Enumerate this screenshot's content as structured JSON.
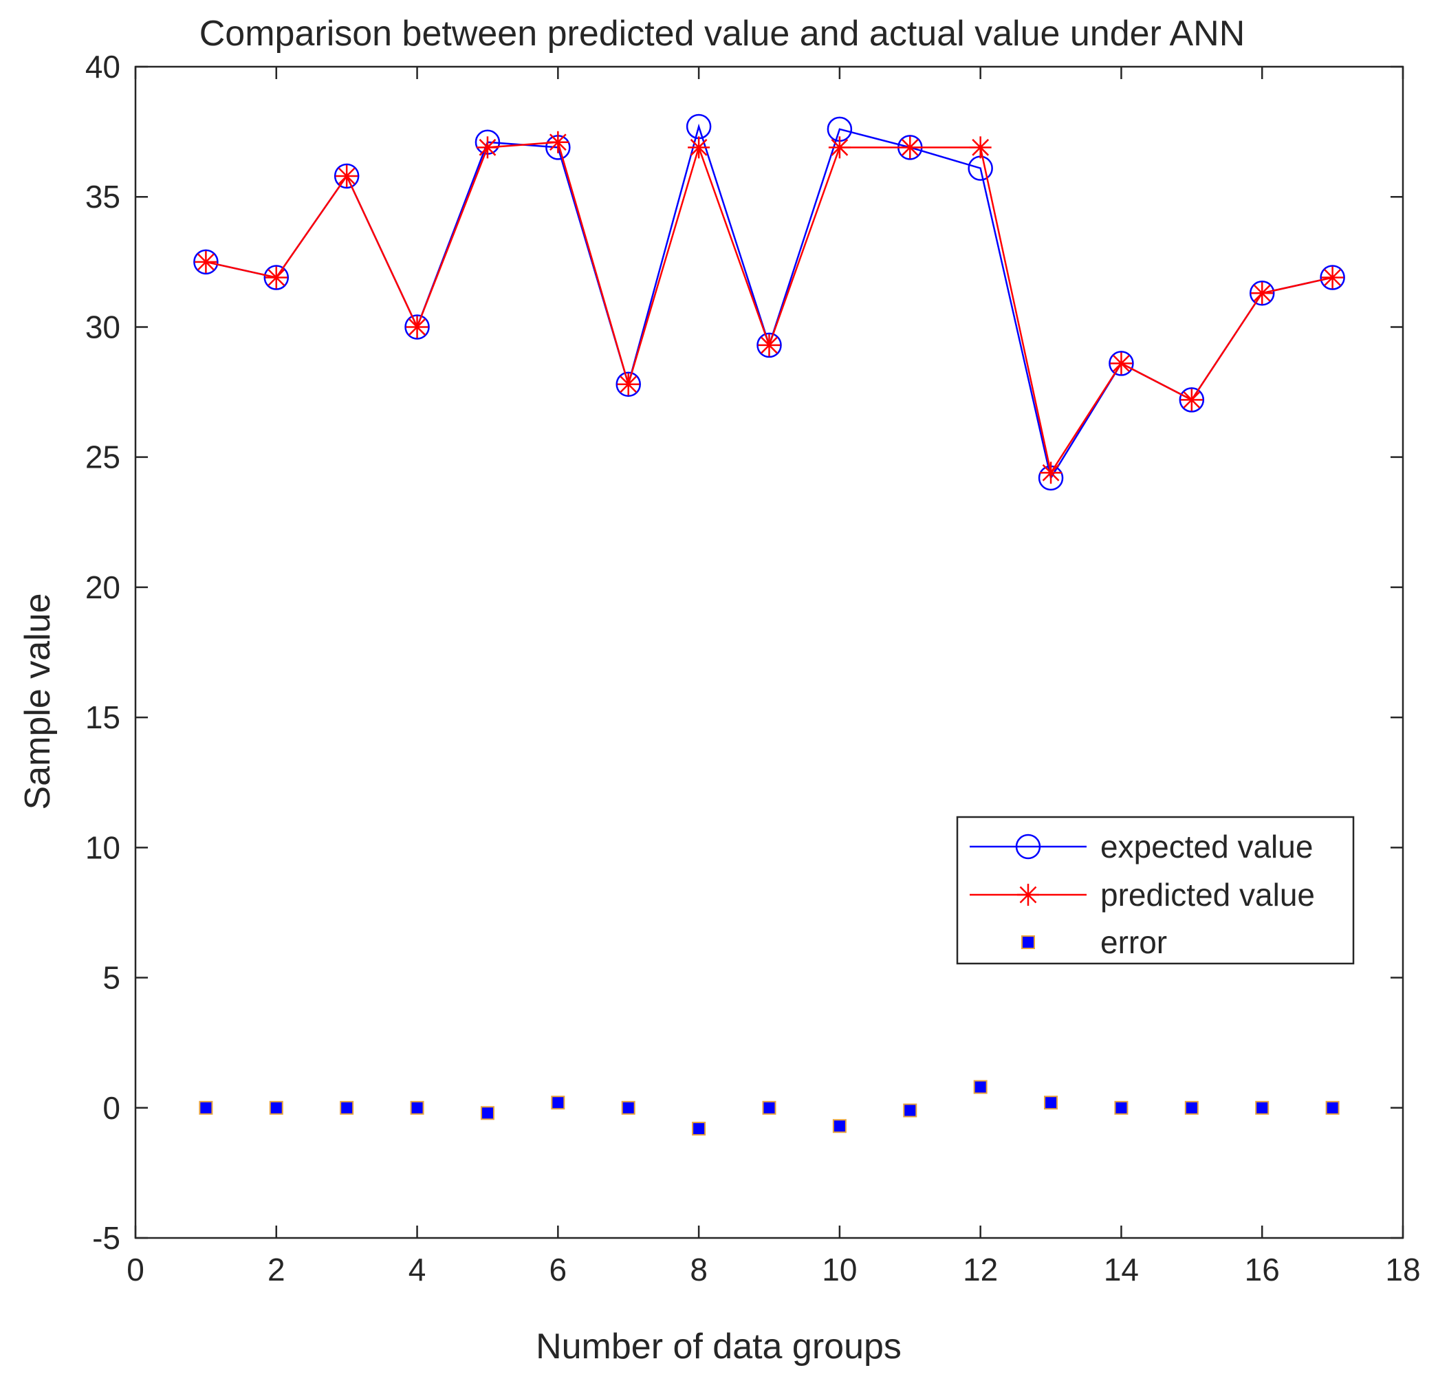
{
  "chart_data": {
    "type": "line",
    "title": "Comparison between predicted value and actual value under ANN",
    "xlabel": "Number of data groups",
    "ylabel": "Sample value",
    "xlim": [
      0,
      18
    ],
    "ylim": [
      -5,
      40
    ],
    "xticks": [
      0,
      2,
      4,
      6,
      8,
      10,
      12,
      14,
      16,
      18
    ],
    "yticks": [
      -5,
      0,
      5,
      10,
      15,
      20,
      25,
      30,
      35,
      40
    ],
    "grid": false,
    "legend_position": "right",
    "x": [
      1,
      2,
      3,
      4,
      5,
      6,
      7,
      8,
      9,
      10,
      11,
      12,
      13,
      14,
      15,
      16,
      17
    ],
    "series": [
      {
        "name": "expected value",
        "style": "line-circle",
        "color": "#0000FF",
        "values": [
          32.5,
          31.9,
          35.8,
          30.0,
          37.1,
          36.9,
          27.8,
          37.7,
          29.3,
          37.6,
          36.9,
          36.1,
          24.2,
          28.6,
          27.2,
          31.3,
          31.9
        ]
      },
      {
        "name": "predicted value",
        "style": "line-star",
        "color": "#FF0000",
        "values": [
          32.5,
          31.9,
          35.8,
          30.0,
          36.9,
          37.1,
          27.8,
          36.9,
          29.3,
          36.9,
          36.9,
          36.9,
          24.4,
          28.6,
          27.2,
          31.3,
          31.9
        ]
      },
      {
        "name": "error",
        "style": "square-marker",
        "color": "#0000FF",
        "edge_color": "#E8A33C",
        "values": [
          0.0,
          0.0,
          0.0,
          0.0,
          -0.2,
          0.2,
          0.0,
          -0.8,
          0.0,
          -0.7,
          -0.1,
          0.8,
          0.2,
          0.0,
          0.0,
          0.0,
          0.0
        ]
      }
    ]
  }
}
